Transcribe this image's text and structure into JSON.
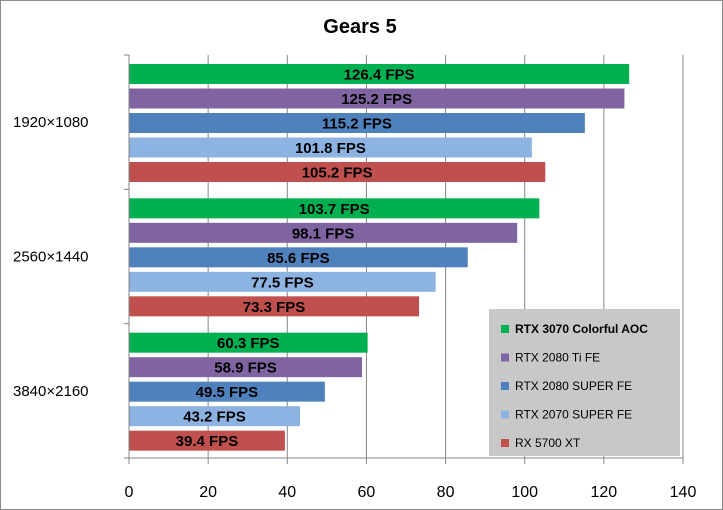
{
  "chart_data": {
    "type": "bar",
    "orientation": "horizontal",
    "title": "Gears 5",
    "categories": [
      "1920×1080",
      "2560×1440",
      "3840×2160"
    ],
    "xlim": [
      0,
      140
    ],
    "xticks": [
      0,
      20,
      40,
      60,
      80,
      100,
      120,
      140
    ],
    "grid": true,
    "legend_position": "bottom-right",
    "label_suffix": " FPS",
    "series": [
      {
        "name": "RTX 3070 Colorful AOC",
        "color": "#00b050",
        "bold": true,
        "values": [
          126.4,
          103.7,
          60.3
        ]
      },
      {
        "name": "RTX 2080 Ti FE",
        "color": "#8064a2",
        "bold": false,
        "values": [
          125.2,
          98.1,
          58.9
        ]
      },
      {
        "name": "RTX 2080 SUPER FE",
        "color": "#4f81bd",
        "bold": false,
        "values": [
          115.2,
          85.6,
          49.5
        ]
      },
      {
        "name": "RTX 2070 SUPER FE",
        "color": "#8db3e2",
        "bold": false,
        "values": [
          101.8,
          77.5,
          43.2
        ]
      },
      {
        "name": "RX 5700 XT",
        "color": "#c0504d",
        "bold": false,
        "values": [
          105.2,
          73.3,
          39.4
        ]
      }
    ]
  }
}
